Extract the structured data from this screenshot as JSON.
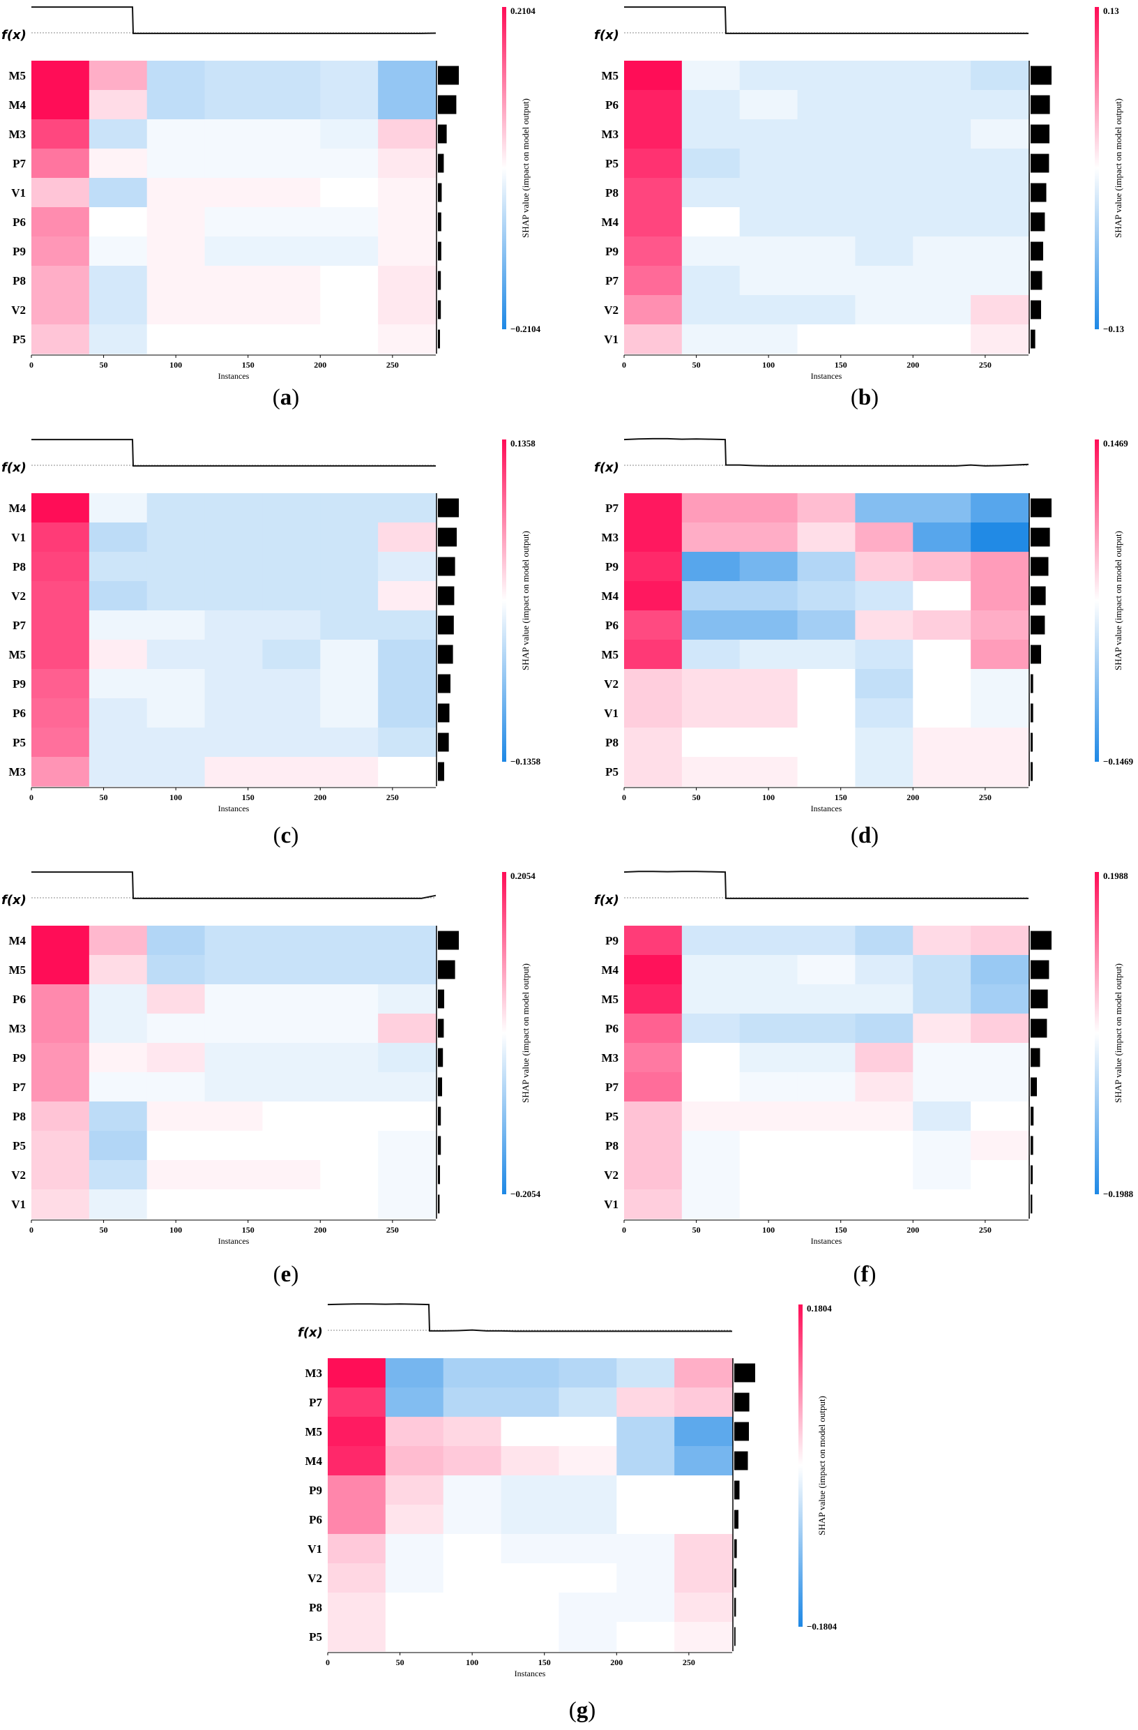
{
  "figure": {
    "fx_label": "f(x)",
    "xlabel": "Instances",
    "colorbar_label": "SHAP value (impact on model output)"
  },
  "chart_data": [
    {
      "type": "heatmap",
      "caption": "(a)",
      "features": [
        "M5",
        "M4",
        "M3",
        "P7",
        "V1",
        "P6",
        "P9",
        "P8",
        "V2",
        "P5"
      ],
      "xticks": [
        0,
        50,
        100,
        150,
        200,
        250
      ],
      "xlim": [
        0,
        280
      ],
      "cmax_label": "0.2104",
      "cmin_label": "−0.2104",
      "cmax": 0.2104,
      "bounds": [
        0,
        40,
        80,
        120,
        160,
        200,
        240,
        280
      ],
      "values": [
        [
          0.21,
          0.07,
          -0.06,
          -0.05,
          -0.05,
          -0.04,
          -0.1
        ],
        [
          0.21,
          0.03,
          -0.06,
          -0.05,
          -0.05,
          -0.04,
          -0.1
        ],
        [
          0.16,
          -0.05,
          -0.01,
          -0.01,
          -0.01,
          -0.02,
          0.04
        ],
        [
          0.12,
          0.01,
          -0.01,
          -0.01,
          -0.01,
          -0.01,
          0.02
        ],
        [
          0.05,
          -0.06,
          0.01,
          0.01,
          0.01,
          0.0,
          0.01
        ],
        [
          0.1,
          0.0,
          0.01,
          -0.01,
          -0.01,
          -0.01,
          0.01
        ],
        [
          0.09,
          -0.01,
          0.01,
          -0.02,
          -0.02,
          -0.02,
          0.01
        ],
        [
          0.07,
          -0.04,
          0.01,
          0.01,
          0.01,
          0.0,
          0.02
        ],
        [
          0.07,
          -0.04,
          0.01,
          0.01,
          0.01,
          0.0,
          0.02
        ],
        [
          0.05,
          -0.03,
          0.0,
          0.0,
          0.0,
          0.0,
          0.01
        ]
      ],
      "importance": [
        1.0,
        0.88,
        0.42,
        0.28,
        0.18,
        0.16,
        0.16,
        0.14,
        0.14,
        0.1
      ],
      "fx": [
        0.95,
        0.95,
        0.95,
        0.95,
        0.95,
        0.95,
        0.95,
        0.95,
        0.05,
        0.05,
        0.05,
        0.05,
        0.05,
        0.05,
        0.05,
        0.05,
        0.05,
        0.05,
        0.05,
        0.05,
        0.05,
        0.05,
        0.05,
        0.05,
        0.05,
        0.05,
        0.05,
        0.05,
        0.06
      ]
    },
    {
      "type": "heatmap",
      "caption": "(b)",
      "features": [
        "M5",
        "P6",
        "M3",
        "P5",
        "P8",
        "M4",
        "P9",
        "P7",
        "V2",
        "V1"
      ],
      "xticks": [
        0,
        50,
        100,
        150,
        200,
        250
      ],
      "xlim": [
        0,
        280
      ],
      "cmax_label": "0.13",
      "cmin_label": "−0.13",
      "cmax": 0.13,
      "bounds": [
        0,
        40,
        80,
        120,
        160,
        200,
        240,
        280
      ],
      "values": [
        [
          0.13,
          -0.01,
          -0.02,
          -0.02,
          -0.02,
          -0.02,
          -0.03
        ],
        [
          0.12,
          -0.02,
          -0.01,
          -0.02,
          -0.02,
          -0.02,
          -0.02
        ],
        [
          0.12,
          -0.02,
          -0.02,
          -0.02,
          -0.02,
          -0.02,
          -0.01
        ],
        [
          0.11,
          -0.03,
          -0.02,
          -0.02,
          -0.02,
          -0.02,
          -0.02
        ],
        [
          0.1,
          -0.02,
          -0.02,
          -0.02,
          -0.02,
          -0.02,
          -0.02
        ],
        [
          0.1,
          0.0,
          -0.02,
          -0.02,
          -0.02,
          -0.02,
          -0.02
        ],
        [
          0.09,
          -0.01,
          -0.01,
          -0.01,
          -0.02,
          -0.01,
          -0.01
        ],
        [
          0.08,
          -0.02,
          -0.01,
          -0.01,
          -0.01,
          -0.01,
          -0.01
        ],
        [
          0.06,
          -0.02,
          -0.02,
          -0.02,
          -0.01,
          -0.01,
          0.02
        ],
        [
          0.03,
          -0.01,
          -0.01,
          0.0,
          0.0,
          0.0,
          0.01
        ]
      ],
      "importance": [
        1.0,
        0.92,
        0.9,
        0.88,
        0.75,
        0.68,
        0.6,
        0.55,
        0.5,
        0.22
      ],
      "fx": [
        0.95,
        0.95,
        0.95,
        0.95,
        0.95,
        0.95,
        0.95,
        0.95,
        0.05,
        0.05,
        0.05,
        0.05,
        0.05,
        0.05,
        0.05,
        0.05,
        0.05,
        0.05,
        0.05,
        0.05,
        0.05,
        0.05,
        0.05,
        0.05,
        0.05,
        0.05,
        0.05,
        0.05,
        0.05
      ]
    },
    {
      "type": "heatmap",
      "caption": "(c)",
      "features": [
        "M4",
        "V1",
        "P8",
        "V2",
        "P7",
        "M5",
        "P9",
        "P6",
        "P5",
        "M3"
      ],
      "xticks": [
        0,
        50,
        100,
        150,
        200,
        250
      ],
      "xlim": [
        0,
        280
      ],
      "cmax_label": "0.1358",
      "cmin_label": "−0.1358",
      "cmax": 0.1358,
      "bounds": [
        0,
        40,
        80,
        120,
        160,
        200,
        240,
        280
      ],
      "values": [
        [
          0.136,
          -0.01,
          -0.03,
          -0.03,
          -0.03,
          -0.03,
          -0.03
        ],
        [
          0.11,
          -0.04,
          -0.03,
          -0.03,
          -0.03,
          -0.03,
          0.02
        ],
        [
          0.105,
          -0.03,
          -0.03,
          -0.03,
          -0.03,
          -0.03,
          -0.02
        ],
        [
          0.1,
          -0.04,
          -0.03,
          -0.03,
          -0.03,
          -0.03,
          0.01
        ],
        [
          0.1,
          -0.01,
          -0.01,
          -0.02,
          -0.02,
          -0.03,
          -0.03
        ],
        [
          0.1,
          0.01,
          -0.02,
          -0.02,
          -0.03,
          -0.01,
          -0.04
        ],
        [
          0.09,
          -0.01,
          -0.01,
          -0.02,
          -0.02,
          -0.01,
          -0.04
        ],
        [
          0.085,
          -0.02,
          -0.01,
          -0.02,
          -0.02,
          -0.01,
          -0.04
        ],
        [
          0.08,
          -0.02,
          -0.02,
          -0.02,
          -0.02,
          -0.02,
          -0.03
        ],
        [
          0.06,
          -0.02,
          -0.02,
          0.01,
          0.01,
          0.01,
          0.0
        ]
      ],
      "importance": [
        1.0,
        0.9,
        0.82,
        0.78,
        0.76,
        0.72,
        0.6,
        0.55,
        0.52,
        0.3
      ],
      "fx": [
        0.95,
        0.95,
        0.95,
        0.95,
        0.95,
        0.95,
        0.95,
        0.95,
        0.05,
        0.05,
        0.05,
        0.05,
        0.05,
        0.05,
        0.05,
        0.05,
        0.05,
        0.05,
        0.05,
        0.05,
        0.05,
        0.05,
        0.05,
        0.05,
        0.05,
        0.05,
        0.05,
        0.05,
        0.05
      ]
    },
    {
      "type": "heatmap",
      "caption": "(d)",
      "features": [
        "P7",
        "M3",
        "P9",
        "M4",
        "P6",
        "M5",
        "V2",
        "V1",
        "P8",
        "P5"
      ],
      "xticks": [
        0,
        50,
        100,
        150,
        200,
        250
      ],
      "xlim": [
        0,
        280
      ],
      "cmax_label": "0.1469",
      "cmin_label": "−0.1469",
      "cmax": 0.1469,
      "bounds": [
        0,
        40,
        80,
        120,
        160,
        200,
        240,
        280
      ],
      "values": [
        [
          0.14,
          0.06,
          0.06,
          0.04,
          -0.08,
          -0.08,
          -0.11
        ],
        [
          0.14,
          0.05,
          0.05,
          0.02,
          0.05,
          -0.11,
          -0.145
        ],
        [
          0.13,
          -0.11,
          -0.09,
          -0.05,
          0.03,
          0.04,
          0.06
        ],
        [
          0.14,
          -0.05,
          -0.05,
          -0.04,
          -0.03,
          0.0,
          0.06
        ],
        [
          0.11,
          -0.08,
          -0.08,
          -0.06,
          0.02,
          0.03,
          0.05
        ],
        [
          0.12,
          -0.03,
          -0.02,
          -0.02,
          -0.03,
          0.0,
          0.06
        ],
        [
          0.03,
          0.02,
          0.02,
          0.0,
          -0.04,
          0.0,
          -0.01
        ],
        [
          0.03,
          0.02,
          0.02,
          0.0,
          -0.03,
          0.0,
          -0.01
        ],
        [
          0.02,
          0.0,
          0.0,
          0.0,
          -0.02,
          0.01,
          0.01
        ],
        [
          0.02,
          0.01,
          0.01,
          0.0,
          -0.02,
          0.01,
          0.01
        ]
      ],
      "importance": [
        1.0,
        0.92,
        0.85,
        0.72,
        0.68,
        0.5,
        0.12,
        0.12,
        0.1,
        0.1
      ],
      "fx": [
        0.95,
        0.97,
        0.98,
        0.98,
        0.96,
        0.97,
        0.96,
        0.95,
        0.08,
        0.06,
        0.05,
        0.05,
        0.05,
        0.05,
        0.05,
        0.05,
        0.05,
        0.05,
        0.05,
        0.05,
        0.05,
        0.05,
        0.05,
        0.05,
        0.08,
        0.05,
        0.06,
        0.08,
        0.1
      ]
    },
    {
      "type": "heatmap",
      "caption": "(e)",
      "features": [
        "M4",
        "M5",
        "P6",
        "M3",
        "P9",
        "P7",
        "P8",
        "P5",
        "V2",
        "V1"
      ],
      "xticks": [
        0,
        50,
        100,
        150,
        200,
        250
      ],
      "xlim": [
        0,
        280
      ],
      "cmax_label": "0.2054",
      "cmin_label": "−0.2054",
      "cmax": 0.2054,
      "bounds": [
        0,
        40,
        80,
        120,
        160,
        200,
        240,
        280
      ],
      "values": [
        [
          0.205,
          0.06,
          -0.07,
          -0.05,
          -0.05,
          -0.05,
          -0.05
        ],
        [
          0.205,
          0.03,
          -0.06,
          -0.05,
          -0.05,
          -0.05,
          -0.05
        ],
        [
          0.1,
          -0.02,
          0.03,
          -0.01,
          -0.01,
          -0.01,
          -0.02
        ],
        [
          0.1,
          -0.02,
          -0.01,
          -0.01,
          -0.01,
          -0.01,
          0.04
        ],
        [
          0.09,
          0.01,
          0.02,
          -0.02,
          -0.02,
          -0.02,
          -0.03
        ],
        [
          0.09,
          -0.01,
          -0.01,
          -0.02,
          -0.02,
          -0.02,
          -0.02
        ],
        [
          0.05,
          -0.06,
          0.01,
          0.01,
          0.0,
          0.0,
          0.0
        ],
        [
          0.04,
          -0.07,
          0.0,
          0.0,
          0.0,
          0.0,
          -0.01
        ],
        [
          0.04,
          -0.05,
          0.01,
          0.01,
          0.01,
          0.0,
          -0.01
        ],
        [
          0.03,
          -0.02,
          0.0,
          0.0,
          0.0,
          0.0,
          -0.01
        ]
      ],
      "importance": [
        1.0,
        0.82,
        0.3,
        0.28,
        0.24,
        0.2,
        0.14,
        0.14,
        0.1,
        0.08
      ],
      "fx": [
        0.95,
        0.95,
        0.95,
        0.95,
        0.95,
        0.95,
        0.95,
        0.95,
        0.05,
        0.05,
        0.05,
        0.05,
        0.05,
        0.05,
        0.05,
        0.05,
        0.05,
        0.05,
        0.05,
        0.05,
        0.05,
        0.05,
        0.05,
        0.05,
        0.05,
        0.05,
        0.05,
        0.05,
        0.15
      ]
    },
    {
      "type": "heatmap",
      "caption": "(f)",
      "features": [
        "P9",
        "M4",
        "M5",
        "P6",
        "M3",
        "P7",
        "P5",
        "P8",
        "V2",
        "V1"
      ],
      "xticks": [
        0,
        50,
        100,
        150,
        200,
        250
      ],
      "xlim": [
        0,
        280
      ],
      "cmax_label": "0.1988",
      "cmin_label": "−0.1988",
      "cmax": 0.1988,
      "bounds": [
        0,
        40,
        80,
        120,
        160,
        200,
        240,
        280
      ],
      "values": [
        [
          0.16,
          -0.04,
          -0.04,
          -0.04,
          -0.06,
          0.03,
          0.04
        ],
        [
          0.195,
          -0.02,
          -0.02,
          -0.01,
          -0.03,
          -0.05,
          -0.09
        ],
        [
          0.18,
          -0.02,
          -0.02,
          -0.02,
          -0.02,
          -0.05,
          -0.08
        ],
        [
          0.13,
          -0.04,
          -0.05,
          -0.05,
          -0.06,
          0.02,
          0.04
        ],
        [
          0.11,
          0.0,
          -0.02,
          -0.02,
          0.04,
          -0.01,
          -0.01
        ],
        [
          0.12,
          0.0,
          -0.01,
          -0.01,
          0.02,
          -0.01,
          -0.01
        ],
        [
          0.05,
          0.01,
          0.01,
          0.01,
          0.01,
          -0.03,
          0.0
        ],
        [
          0.05,
          -0.01,
          0.0,
          0.0,
          0.0,
          -0.01,
          0.01
        ],
        [
          0.05,
          -0.01,
          0.0,
          0.0,
          0.0,
          -0.01,
          0.0
        ],
        [
          0.04,
          -0.01,
          0.0,
          0.0,
          0.0,
          0.0,
          0.0
        ]
      ],
      "importance": [
        1.0,
        0.88,
        0.82,
        0.78,
        0.45,
        0.3,
        0.14,
        0.12,
        0.1,
        0.08
      ],
      "fx": [
        0.95,
        0.97,
        0.97,
        0.96,
        0.97,
        0.97,
        0.96,
        0.95,
        0.05,
        0.05,
        0.05,
        0.05,
        0.05,
        0.05,
        0.05,
        0.05,
        0.05,
        0.05,
        0.05,
        0.05,
        0.05,
        0.05,
        0.05,
        0.05,
        0.05,
        0.05,
        0.05,
        0.05,
        0.05
      ]
    },
    {
      "type": "heatmap",
      "caption": "(g)",
      "features": [
        "M3",
        "P7",
        "M5",
        "M4",
        "P9",
        "P6",
        "V1",
        "V2",
        "P8",
        "P5"
      ],
      "xticks": [
        0,
        50,
        100,
        150,
        200,
        250
      ],
      "xlim": [
        0,
        280
      ],
      "cmax_label": "0.1804",
      "cmin_label": "−0.1804",
      "cmax": 0.1804,
      "bounds": [
        0,
        40,
        80,
        120,
        160,
        200,
        240,
        280
      ],
      "values": [
        [
          0.18,
          -0.11,
          -0.07,
          -0.07,
          -0.06,
          -0.04,
          0.06
        ],
        [
          0.15,
          -0.1,
          -0.06,
          -0.06,
          -0.04,
          0.03,
          0.04
        ],
        [
          0.17,
          0.04,
          0.03,
          0.0,
          0.0,
          -0.06,
          -0.13
        ],
        [
          0.16,
          0.05,
          0.04,
          0.02,
          0.01,
          -0.06,
          -0.11
        ],
        [
          0.09,
          0.03,
          -0.01,
          -0.02,
          -0.02,
          0.0,
          0.0
        ],
        [
          0.09,
          0.02,
          -0.01,
          -0.02,
          -0.02,
          0.0,
          0.0
        ],
        [
          0.04,
          -0.01,
          0.0,
          -0.01,
          -0.01,
          -0.01,
          0.03
        ],
        [
          0.03,
          -0.01,
          0.0,
          0.0,
          0.0,
          -0.01,
          0.03
        ],
        [
          0.02,
          0.0,
          0.0,
          0.0,
          -0.01,
          -0.01,
          0.02
        ],
        [
          0.02,
          0.0,
          0.0,
          0.0,
          -0.01,
          0.0,
          0.01
        ]
      ],
      "importance": [
        1.0,
        0.72,
        0.7,
        0.65,
        0.25,
        0.2,
        0.12,
        0.1,
        0.08,
        0.06
      ],
      "fx": [
        0.95,
        0.96,
        0.97,
        0.97,
        0.96,
        0.97,
        0.96,
        0.95,
        0.05,
        0.06,
        0.08,
        0.05,
        0.05,
        0.04,
        0.04,
        0.04,
        0.04,
        0.04,
        0.04,
        0.04,
        0.04,
        0.04,
        0.04,
        0.04,
        0.04,
        0.04,
        0.04,
        0.04,
        0.04
      ]
    }
  ]
}
